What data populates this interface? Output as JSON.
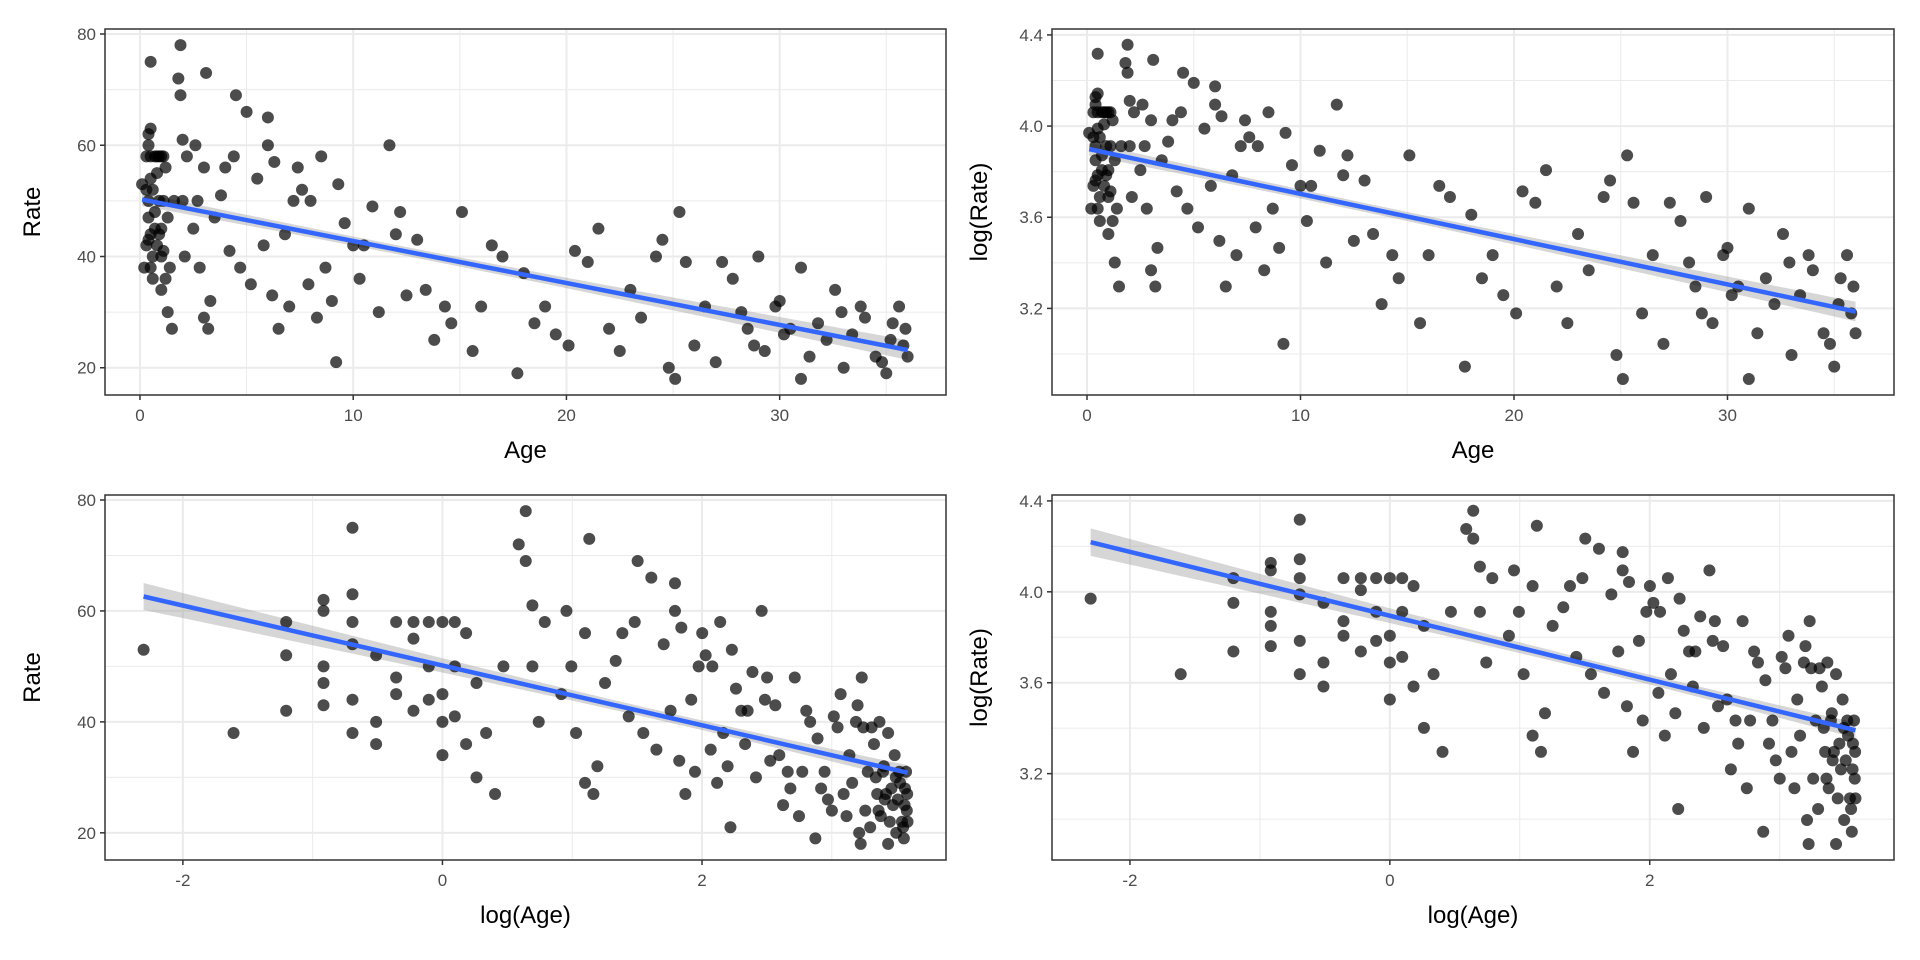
{
  "chart_data": {
    "type": "scatter",
    "layout": "2x2 grid",
    "fit": "linear regression with 95% confidence band",
    "colors": {
      "points": "#000000",
      "fit_line": "#3366FF",
      "band": "#999999",
      "grid": "#EBEBEB",
      "border": "#333333"
    },
    "data": {
      "age": [
        0.1,
        0.2,
        0.3,
        0.3,
        0.3,
        0.4,
        0.4,
        0.4,
        0.4,
        0.4,
        0.5,
        0.5,
        0.5,
        0.5,
        0.5,
        0.5,
        0.6,
        0.6,
        0.6,
        0.7,
        0.7,
        0.7,
        0.8,
        0.8,
        0.8,
        0.9,
        0.9,
        0.9,
        1.0,
        1.0,
        1.0,
        1.0,
        1.1,
        1.1,
        1.1,
        1.2,
        1.2,
        1.3,
        1.3,
        1.4,
        1.5,
        1.6,
        1.8,
        1.9,
        1.9,
        2.0,
        2.0,
        2.1,
        2.2,
        2.5,
        2.6,
        2.7,
        2.8,
        3.0,
        3.0,
        3.1,
        3.2,
        3.3,
        3.5,
        3.8,
        4.0,
        4.2,
        4.4,
        4.5,
        4.7,
        5.0,
        5.2,
        5.5,
        5.8,
        6.0,
        6.0,
        6.2,
        6.3,
        6.5,
        6.8,
        7.0,
        7.2,
        7.4,
        7.6,
        7.9,
        8.0,
        8.3,
        8.5,
        8.7,
        9.0,
        9.2,
        9.3,
        9.6,
        10.0,
        10.3,
        10.5,
        10.9,
        11.2,
        11.7,
        12.0,
        12.2,
        12.5,
        13.0,
        13.4,
        13.8,
        14.3,
        14.6,
        15.1,
        15.6,
        16.0,
        16.5,
        17.0,
        17.7,
        18.0,
        18.5,
        19.0,
        19.5,
        20.1,
        20.4,
        21.0,
        21.5,
        22.0,
        22.5,
        23.0,
        23.5,
        24.2,
        24.5,
        24.8,
        25.1,
        25.3,
        25.6,
        26.0,
        26.5,
        27.0,
        27.3,
        27.8,
        28.2,
        28.5,
        29.0,
        29.3,
        29.8,
        30.0,
        30.5,
        31.0,
        31.0,
        31.4,
        31.8,
        32.2,
        32.6,
        33.0,
        33.4,
        33.8,
        34.0,
        34.5,
        35.0,
        35.3,
        35.6,
        35.8,
        36.0,
        35.9,
        35.2,
        34.8,
        32.9,
        30.2,
        28.8
      ],
      "rate": [
        53,
        38,
        42,
        52,
        58,
        47,
        50,
        43,
        60,
        62,
        75,
        63,
        54,
        44,
        38,
        58,
        40,
        36,
        52,
        58,
        45,
        48,
        58,
        42,
        55,
        58,
        50,
        44,
        58,
        45,
        34,
        40,
        58,
        50,
        41,
        36,
        56,
        47,
        30,
        38,
        27,
        50,
        72,
        78,
        69,
        50,
        61,
        40,
        58,
        45,
        60,
        50,
        38,
        56,
        29,
        73,
        27,
        32,
        47,
        51,
        56,
        41,
        58,
        69,
        38,
        66,
        35,
        54,
        42,
        65,
        60,
        33,
        57,
        27,
        44,
        31,
        50,
        56,
        52,
        35,
        50,
        29,
        58,
        38,
        32,
        21,
        53,
        46,
        42,
        36,
        42,
        49,
        30,
        60,
        44,
        48,
        33,
        43,
        34,
        25,
        31,
        28,
        48,
        23,
        31,
        42,
        40,
        19,
        37,
        28,
        31,
        26,
        24,
        41,
        39,
        45,
        27,
        23,
        34,
        29,
        40,
        43,
        20,
        18,
        48,
        39,
        24,
        31,
        21,
        39,
        36,
        30,
        27,
        40,
        23,
        31,
        32,
        27,
        38,
        18,
        22,
        28,
        25,
        34,
        20,
        26,
        31,
        29,
        22,
        19,
        28,
        31,
        24,
        22,
        27,
        25,
        21,
        30,
        26,
        24
      ]
    },
    "panels": [
      {
        "id": "age-vs-rate",
        "x": "age",
        "y": "rate",
        "xlabel": "Age",
        "ylabel": "Rate",
        "xlim": [
          -1.64,
          37.8
        ],
        "ylim": [
          15.1,
          80.9
        ],
        "xticks": [
          0,
          10,
          20,
          30
        ],
        "xtick_labels": [
          "0",
          "10",
          "20",
          "30"
        ],
        "yticks": [
          20,
          40,
          60,
          80
        ],
        "ytick_labels": [
          "20",
          "40",
          "60",
          "80"
        ]
      },
      {
        "id": "age-vs-lograte",
        "x": "age",
        "y": "log_rate",
        "xlabel": "Age",
        "ylabel": "log(Rate)",
        "xlim": [
          -1.64,
          37.8
        ],
        "ylim": [
          2.82,
          4.426
        ],
        "xticks": [
          0,
          10,
          20,
          30
        ],
        "xtick_labels": [
          "0",
          "10",
          "20",
          "30"
        ],
        "yticks": [
          3.2,
          3.6,
          4.0,
          4.4
        ],
        "ytick_labels": [
          "3.2",
          "3.6",
          "4.0",
          "4.4"
        ]
      },
      {
        "id": "logage-vs-rate",
        "x": "log_age",
        "y": "rate",
        "xlabel": "log(Age)",
        "ylabel": "Rate",
        "xlim": [
          -2.6,
          3.88
        ],
        "ylim": [
          15.1,
          80.9
        ],
        "xticks": [
          -2,
          0,
          2
        ],
        "xtick_labels": [
          "-2",
          "0",
          "2"
        ],
        "yticks": [
          20,
          40,
          60,
          80
        ],
        "ytick_labels": [
          "20",
          "40",
          "60",
          "80"
        ]
      },
      {
        "id": "logage-vs-lograte",
        "x": "log_age",
        "y": "log_rate",
        "xlabel": "log(Age)",
        "ylabel": "log(Rate)",
        "xlim": [
          -2.6,
          3.88
        ],
        "ylim": [
          2.82,
          4.426
        ],
        "xticks": [
          -2,
          0,
          2
        ],
        "xtick_labels": [
          "-2",
          "0",
          "2"
        ],
        "yticks": [
          3.2,
          3.6,
          4.0,
          4.4
        ],
        "ytick_labels": [
          "3.2",
          "3.6",
          "4.0",
          "4.4"
        ]
      }
    ]
  }
}
